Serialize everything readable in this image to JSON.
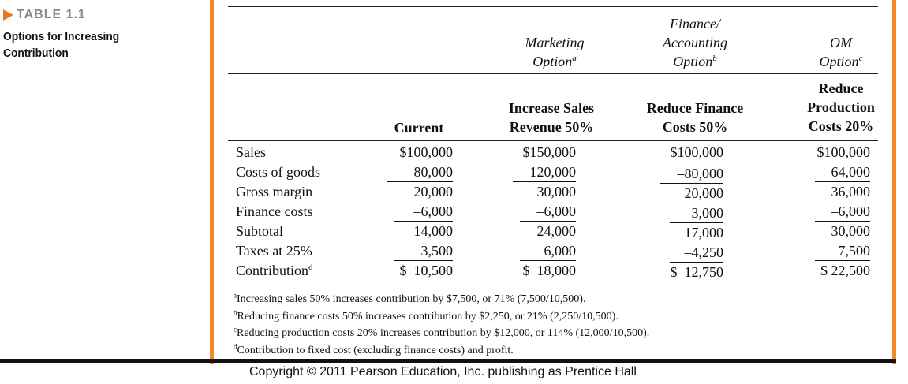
{
  "caption": {
    "tag": "TABLE 1.1",
    "title_line1": "Options for Increasing",
    "title_line2": "Contribution"
  },
  "headers": {
    "options": [
      {
        "line1": "",
        "line2": "Marketing",
        "line3": "Option",
        "sup": "a"
      },
      {
        "line1": "Finance/",
        "line2": "Accounting",
        "line3": "Option",
        "sup": "b"
      },
      {
        "line1": "",
        "line2": "OM",
        "line3": "Option",
        "sup": "c"
      }
    ],
    "columns": [
      {
        "lines": [
          "Current"
        ]
      },
      {
        "lines": [
          "Increase Sales",
          "Revenue 50%"
        ]
      },
      {
        "lines": [
          "Reduce Finance",
          "Costs 50%"
        ]
      },
      {
        "lines": [
          "Reduce",
          "Production",
          "Costs 20%"
        ]
      }
    ]
  },
  "rows": [
    {
      "label": "Sales",
      "values": [
        "$100,000",
        "$150,000",
        "$100,000",
        "$100,000"
      ],
      "underline": false
    },
    {
      "label": "Costs of goods",
      "values": [
        "–80,000",
        "–120,000",
        "–80,000",
        "–64,000"
      ],
      "underline": true
    },
    {
      "label": "Gross margin",
      "values": [
        "20,000",
        "30,000",
        "20,000",
        "36,000"
      ],
      "underline": false
    },
    {
      "label": "Finance costs",
      "values": [
        "–6,000",
        "–6,000",
        "–3,000",
        "–6,000"
      ],
      "underline": true
    },
    {
      "label": "Subtotal",
      "values": [
        "14,000",
        "24,000",
        "17,000",
        "30,000"
      ],
      "underline": false
    },
    {
      "label": "Taxes at 25%",
      "values": [
        "–3,500",
        "–6,000",
        "–4,250",
        "–7,500"
      ],
      "underline": true
    },
    {
      "label": "Contribution",
      "label_sup": "d",
      "values": [
        "$  10,500",
        "$  18,000",
        "$  12,750",
        "$ 22,500"
      ],
      "underline": false
    }
  ],
  "footnotes": [
    {
      "mark": "a",
      "text": "Increasing sales 50% increases contribution by $7,500, or 71% (7,500/10,500)."
    },
    {
      "mark": "b",
      "text": "Reducing finance costs 50% increases contribution by $2,250, or 21% (2,250/10,500)."
    },
    {
      "mark": "c",
      "text": "Reducing production costs 20% increases contribution by $12,000, or 114% (12,000/10,500)."
    },
    {
      "mark": "d",
      "text": "Contribution to fixed cost (excluding finance costs) and profit."
    }
  ],
  "copyright": "Copyright © 2011 Pearson Education, Inc. publishing as Prentice Hall",
  "colors": {
    "accent": "#f08a24",
    "tag_gray": "#8a8a8a"
  }
}
